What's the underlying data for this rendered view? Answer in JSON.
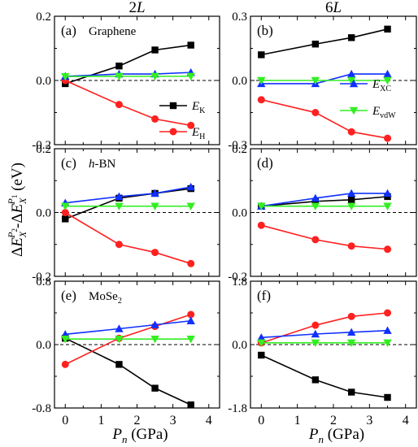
{
  "figure": {
    "col_titles": [
      "2L",
      "6L"
    ],
    "ylabel": "ΔE_X^{P2}-ΔE_X^{P1} (eV)",
    "xlabel": "P_n (GPa)"
  },
  "legend": {
    "series": [
      {
        "key": "EK",
        "label": "E",
        "sub": "K",
        "color": "#000000",
        "marker": "square"
      },
      {
        "key": "EH",
        "label": "E",
        "sub": "H",
        "color": "#ff2020",
        "marker": "circle"
      },
      {
        "key": "EXC",
        "label": "E",
        "sub": "XC",
        "color": "#1030ff",
        "marker": "triangle-up"
      },
      {
        "key": "EvdW",
        "label": "E",
        "sub": "vdW",
        "color": "#33ee22",
        "marker": "triangle-down"
      }
    ]
  },
  "chart_data": [
    {
      "type": "line",
      "panel": "(a)",
      "annotation": "Graphene",
      "x": [
        0,
        1.5,
        2.5,
        3.5
      ],
      "xlim": [
        -0.3,
        4.3
      ],
      "xticks": [
        0,
        1,
        2,
        3,
        4
      ],
      "ylim": [
        -0.2,
        0.2
      ],
      "yticks": [
        -0.2,
        0.0,
        0.2
      ],
      "ytick_labels": [
        "-0.2",
        "0.0",
        "0.2"
      ],
      "series": [
        {
          "name": "E_K",
          "values": [
            -0.01,
            0.045,
            0.095,
            0.11
          ]
        },
        {
          "name": "E_H",
          "values": [
            0.0,
            -0.075,
            -0.12,
            -0.14
          ]
        },
        {
          "name": "E_XC",
          "values": [
            0.013,
            0.02,
            0.02,
            0.025
          ]
        },
        {
          "name": "E_vdW",
          "values": [
            0.012,
            0.013,
            0.013,
            0.013
          ]
        }
      ]
    },
    {
      "type": "line",
      "panel": "(b)",
      "annotation": "",
      "x": [
        0,
        1.5,
        2.5,
        3.5
      ],
      "xlim": [
        -0.3,
        4.3
      ],
      "xticks": [
        0,
        1,
        2,
        3,
        4
      ],
      "ylim": [
        -0.3,
        0.3
      ],
      "yticks": [
        -0.3,
        0.0,
        0.3
      ],
      "ytick_labels": [
        "-0.3",
        "0.0",
        "0.3"
      ],
      "series": [
        {
          "name": "E_K",
          "values": [
            0.12,
            0.17,
            0.2,
            0.24
          ]
        },
        {
          "name": "E_H",
          "values": [
            -0.09,
            -0.15,
            -0.24,
            -0.27
          ]
        },
        {
          "name": "E_XC",
          "values": [
            -0.015,
            -0.015,
            0.03,
            0.03
          ]
        },
        {
          "name": "E_vdW",
          "values": [
            0.0,
            0.0,
            0.0,
            0.0
          ]
        }
      ]
    },
    {
      "type": "line",
      "panel": "(c)",
      "annotation": "h-BN",
      "x": [
        0,
        1.5,
        2.5,
        3.5
      ],
      "xlim": [
        -0.3,
        4.3
      ],
      "xticks": [
        0,
        1,
        2,
        3,
        4
      ],
      "ylim": [
        -0.2,
        0.2
      ],
      "yticks": [
        -0.2,
        0.0,
        0.2
      ],
      "ytick_labels": [
        "-0.2",
        "0.0",
        "0.2"
      ],
      "series": [
        {
          "name": "E_K",
          "values": [
            -0.02,
            0.045,
            0.06,
            0.075
          ]
        },
        {
          "name": "E_H",
          "values": [
            0.0,
            -0.1,
            -0.125,
            -0.16
          ]
        },
        {
          "name": "E_XC",
          "values": [
            0.03,
            0.05,
            0.06,
            0.08
          ]
        },
        {
          "name": "E_vdW",
          "values": [
            0.02,
            0.02,
            0.02,
            0.02
          ]
        }
      ]
    },
    {
      "type": "line",
      "panel": "(d)",
      "annotation": "",
      "x": [
        0,
        1.5,
        2.5,
        3.5
      ],
      "xlim": [
        -0.3,
        4.3
      ],
      "xticks": [
        0,
        1,
        2,
        3,
        4
      ],
      "ylim": [
        -0.2,
        0.2
      ],
      "yticks": [
        -0.2,
        0.0,
        0.2
      ],
      "ytick_labels": [
        "-0.2",
        "0.0",
        "0.2"
      ],
      "series": [
        {
          "name": "E_K",
          "values": [
            0.02,
            0.035,
            0.04,
            0.05
          ]
        },
        {
          "name": "E_H",
          "values": [
            -0.04,
            -0.085,
            -0.105,
            -0.115
          ]
        },
        {
          "name": "E_XC",
          "values": [
            0.02,
            0.045,
            0.06,
            0.06
          ]
        },
        {
          "name": "E_vdW",
          "values": [
            0.02,
            0.02,
            0.02,
            0.02
          ]
        }
      ]
    },
    {
      "type": "line",
      "panel": "(e)",
      "annotation": "MoSe2",
      "x": [
        0,
        1.5,
        2.5,
        3.5
      ],
      "xlim": [
        -0.3,
        4.3
      ],
      "xticks": [
        0,
        1,
        2,
        3,
        4
      ],
      "ylim": [
        -0.8,
        0.8
      ],
      "yticks": [
        -0.8,
        0.0,
        0.8
      ],
      "ytick_labels": [
        "-0.8",
        "0.0",
        "0.8"
      ],
      "series": [
        {
          "name": "E_K",
          "values": [
            0.08,
            -0.25,
            -0.55,
            -0.76
          ]
        },
        {
          "name": "E_H",
          "values": [
            -0.25,
            0.08,
            0.23,
            0.38
          ]
        },
        {
          "name": "E_XC",
          "values": [
            0.13,
            0.2,
            0.25,
            0.3
          ]
        },
        {
          "name": "E_vdW",
          "values": [
            0.07,
            0.07,
            0.07,
            0.07
          ]
        }
      ]
    },
    {
      "type": "line",
      "panel": "(f)",
      "annotation": "",
      "x": [
        0,
        1.5,
        2.5,
        3.5
      ],
      "xlim": [
        -0.3,
        4.3
      ],
      "xticks": [
        0,
        1,
        2,
        3,
        4
      ],
      "ylim": [
        -1.8,
        1.8
      ],
      "yticks": [
        -1.8,
        0.0,
        1.8
      ],
      "ytick_labels": [
        "-1.8",
        "0.0",
        "1.8"
      ],
      "series": [
        {
          "name": "E_K",
          "values": [
            -0.3,
            -1.0,
            -1.35,
            -1.5
          ]
        },
        {
          "name": "E_H",
          "values": [
            0.05,
            0.55,
            0.8,
            0.9
          ]
        },
        {
          "name": "E_XC",
          "values": [
            0.2,
            0.3,
            0.35,
            0.4
          ]
        },
        {
          "name": "E_vdW",
          "values": [
            0.05,
            0.05,
            0.05,
            0.05
          ]
        }
      ]
    }
  ]
}
